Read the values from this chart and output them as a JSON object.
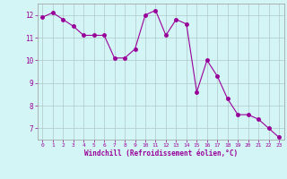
{
  "x": [
    0,
    1,
    2,
    3,
    4,
    5,
    6,
    7,
    8,
    9,
    10,
    11,
    12,
    13,
    14,
    15,
    16,
    17,
    18,
    19,
    20,
    21,
    22,
    23
  ],
  "y": [
    11.9,
    12.1,
    11.8,
    11.5,
    11.1,
    11.1,
    11.1,
    10.1,
    10.1,
    10.5,
    12.0,
    12.2,
    11.1,
    11.8,
    11.6,
    8.6,
    10.0,
    9.3,
    8.3,
    7.6,
    7.6,
    7.4,
    7.0,
    6.6
  ],
  "line_color": "#990099",
  "marker": "o",
  "marker_size": 2.5,
  "bg_color": "#d4f5f5",
  "grid_color": "#b0c8c8",
  "xlabel": "Windchill (Refroidissement éolien,°C)",
  "ylim": [
    6.5,
    12.5
  ],
  "xlim": [
    -0.5,
    23.5
  ],
  "yticks": [
    7,
    8,
    9,
    10,
    11,
    12
  ],
  "tick_color": "#990099",
  "label_color": "#990099"
}
